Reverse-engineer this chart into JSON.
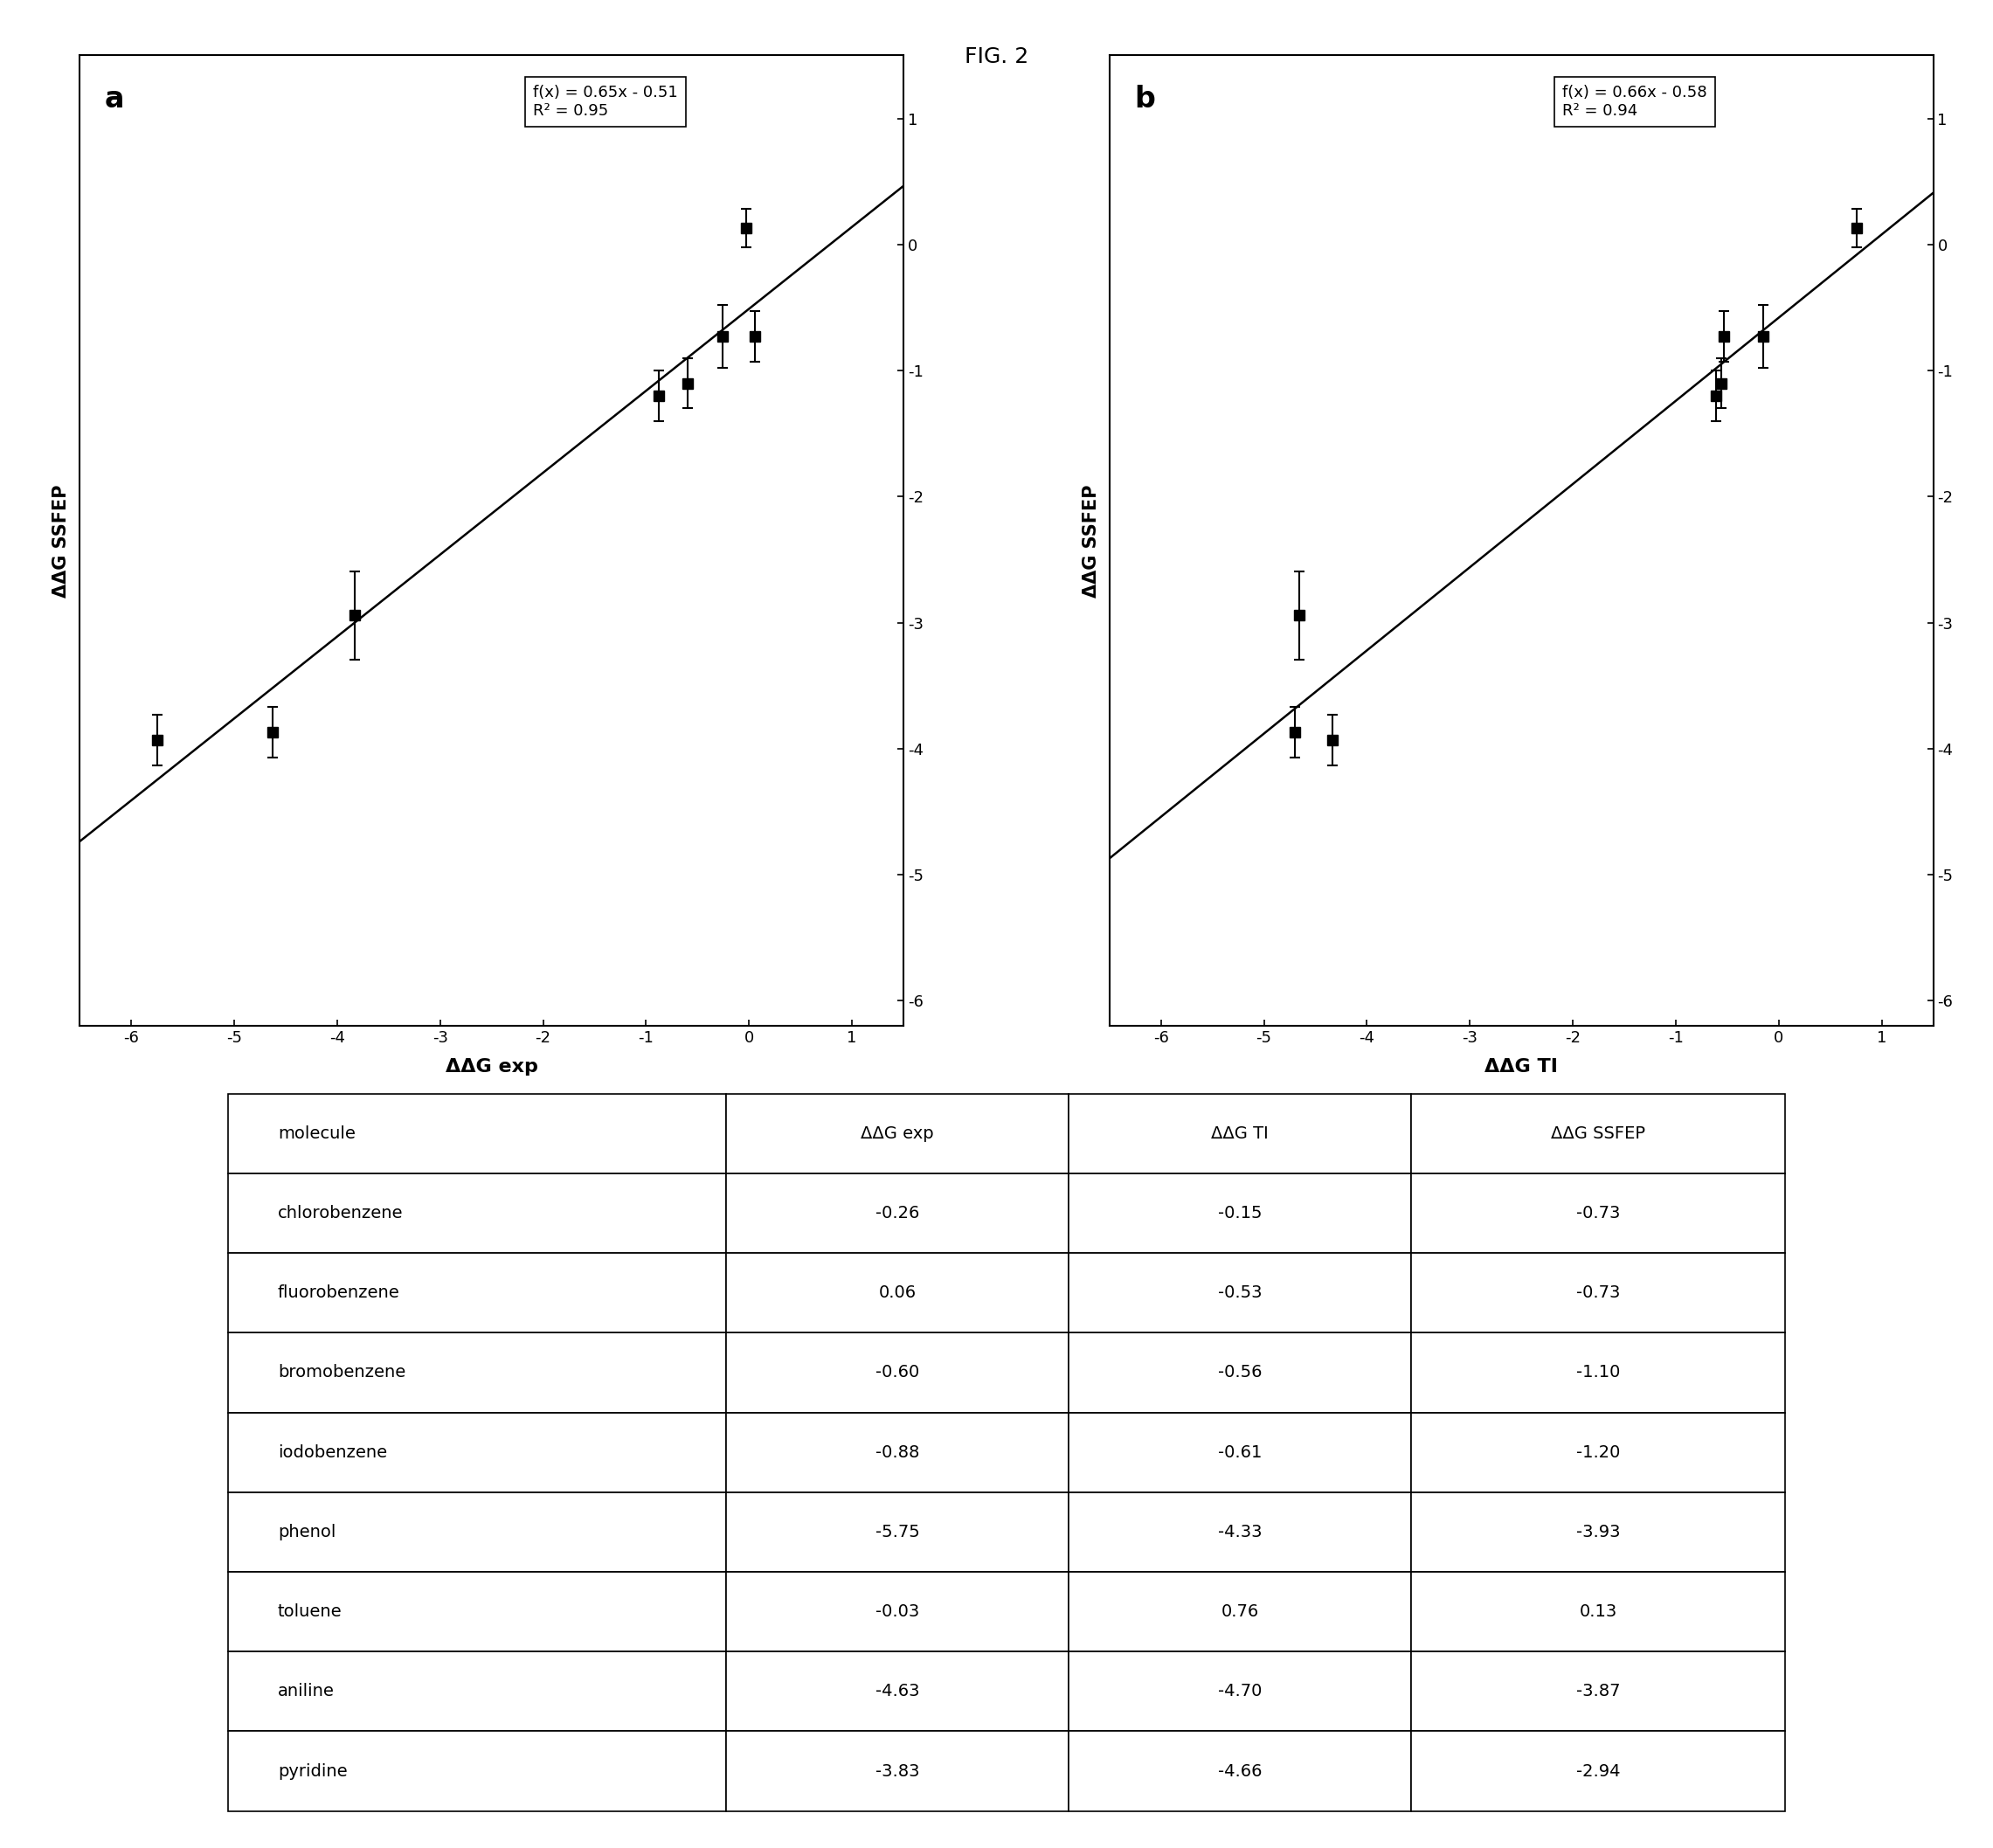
{
  "title": "FIG. 2",
  "molecules": [
    "chlorobenzene",
    "fluorobenzene",
    "bromobenzene",
    "iodobenzene",
    "phenol",
    "toluene",
    "aniline",
    "pyridine"
  ],
  "ddg_exp": [
    -0.26,
    0.06,
    -0.6,
    -0.88,
    -5.75,
    -0.03,
    -4.63,
    -3.83
  ],
  "ddg_ti": [
    -0.15,
    -0.53,
    -0.56,
    -0.61,
    -4.33,
    0.76,
    -4.7,
    -4.66
  ],
  "ddg_ssfep": [
    -0.73,
    -0.73,
    -1.1,
    -1.2,
    -3.93,
    0.13,
    -3.87,
    -2.94
  ],
  "ddg_ssfep_err": [
    0.25,
    0.2,
    0.2,
    0.2,
    0.2,
    0.15,
    0.2,
    0.35
  ],
  "plot_a": {
    "label": "a",
    "xlabel": "ΔΔG exp",
    "ylabel": "ΔΔG SSFEP",
    "eq": "f(x) = 0.65x - 0.51",
    "r2": "R² = 0.95",
    "slope": 0.65,
    "intercept": -0.51,
    "xlim": [
      -6.5,
      1.5
    ],
    "ylim": [
      -6.2,
      1.5
    ],
    "xticks": [
      -6,
      -5,
      -4,
      -3,
      -2,
      -1,
      0,
      1
    ],
    "yticks": [
      -6,
      -5,
      -4,
      -3,
      -2,
      -1,
      0,
      1
    ]
  },
  "plot_b": {
    "label": "b",
    "xlabel": "ΔΔG TI",
    "ylabel": "ΔΔG SSFEP",
    "eq": "f(x) = 0.66x - 0.58",
    "r2": "R² = 0.94",
    "slope": 0.66,
    "intercept": -0.58,
    "xlim": [
      -6.5,
      1.5
    ],
    "ylim": [
      -6.2,
      1.5
    ],
    "xticks": [
      -6,
      -5,
      -4,
      -3,
      -2,
      -1,
      0,
      1
    ],
    "yticks": [
      -6,
      -5,
      -4,
      -3,
      -2,
      -1,
      0,
      1
    ]
  },
  "table_columns": [
    "molecule",
    "ΔΔG exp",
    "ΔΔG TI",
    "ΔΔG SSFEP"
  ],
  "background_color": "#ffffff",
  "marker_color": "#000000",
  "line_color": "#000000"
}
